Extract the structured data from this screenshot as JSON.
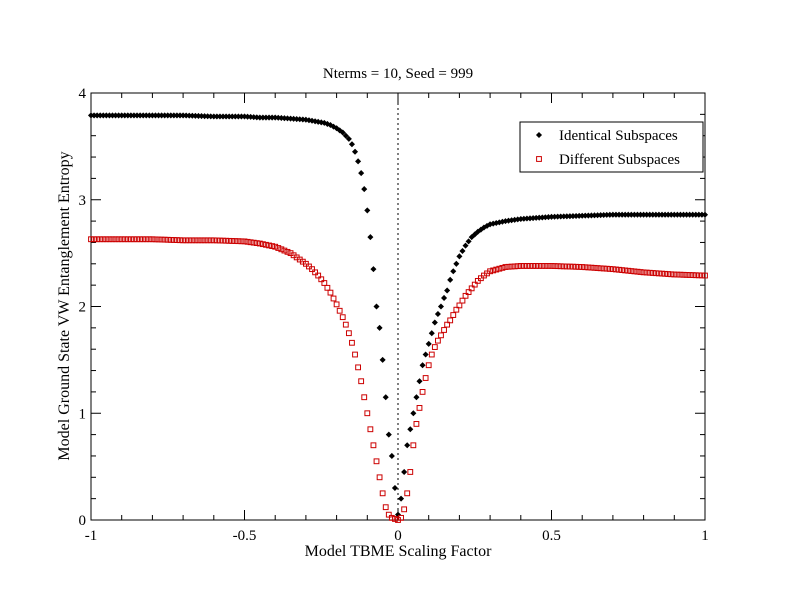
{
  "chart_data": {
    "type": "scatter",
    "title": "Nterms = 10, Seed = 999",
    "xlabel": "Model TBME Scaling Factor",
    "ylabel": "Model Ground State VW Entanglement Entropy",
    "xlim": [
      -1,
      1
    ],
    "ylim": [
      0,
      4
    ],
    "xticks": [
      -1,
      -0.5,
      0,
      0.5,
      1
    ],
    "xtick_labels": [
      "-1",
      "-0.5",
      "0",
      "0.5",
      "1"
    ],
    "yticks": [
      0,
      1,
      2,
      3,
      4
    ],
    "ytick_labels": [
      "0",
      "1",
      "2",
      "3",
      "4"
    ],
    "grid": false,
    "legend_position": "top-right",
    "series": [
      {
        "name": "Identical Subspaces",
        "marker": "diamond",
        "color": "#000000",
        "x": [
          -1.0,
          -0.9,
          -0.8,
          -0.7,
          -0.6,
          -0.5,
          -0.45,
          -0.4,
          -0.35,
          -0.3,
          -0.28,
          -0.26,
          -0.24,
          -0.22,
          -0.2,
          -0.19,
          -0.18,
          -0.17,
          -0.16,
          -0.15,
          -0.14,
          -0.13,
          -0.12,
          -0.11,
          -0.1,
          -0.09,
          -0.08,
          -0.07,
          -0.06,
          -0.05,
          -0.04,
          -0.03,
          -0.02,
          -0.01,
          0.0,
          0.01,
          0.02,
          0.03,
          0.04,
          0.05,
          0.06,
          0.07,
          0.08,
          0.09,
          0.1,
          0.11,
          0.12,
          0.13,
          0.14,
          0.15,
          0.16,
          0.17,
          0.18,
          0.19,
          0.2,
          0.22,
          0.24,
          0.26,
          0.28,
          0.3,
          0.35,
          0.4,
          0.5,
          0.6,
          0.7,
          0.8,
          0.9,
          1.0
        ],
        "y": [
          3.79,
          3.79,
          3.79,
          3.79,
          3.78,
          3.78,
          3.77,
          3.77,
          3.76,
          3.75,
          3.74,
          3.73,
          3.72,
          3.7,
          3.67,
          3.65,
          3.63,
          3.6,
          3.57,
          3.52,
          3.45,
          3.36,
          3.25,
          3.1,
          2.9,
          2.65,
          2.35,
          2.0,
          1.8,
          1.5,
          1.15,
          0.8,
          0.6,
          0.3,
          0.05,
          0.2,
          0.45,
          0.7,
          0.85,
          1.0,
          1.15,
          1.3,
          1.45,
          1.55,
          1.65,
          1.75,
          1.85,
          1.93,
          2.0,
          2.08,
          2.15,
          2.25,
          2.33,
          2.4,
          2.47,
          2.57,
          2.65,
          2.7,
          2.74,
          2.77,
          2.8,
          2.82,
          2.84,
          2.85,
          2.86,
          2.86,
          2.86,
          2.86
        ]
      },
      {
        "name": "Different Subspaces",
        "marker": "square",
        "color": "#cc0000",
        "x": [
          -1.0,
          -0.9,
          -0.8,
          -0.7,
          -0.6,
          -0.5,
          -0.45,
          -0.4,
          -0.35,
          -0.3,
          -0.28,
          -0.26,
          -0.24,
          -0.22,
          -0.2,
          -0.19,
          -0.18,
          -0.17,
          -0.16,
          -0.15,
          -0.14,
          -0.13,
          -0.12,
          -0.11,
          -0.1,
          -0.09,
          -0.08,
          -0.07,
          -0.06,
          -0.05,
          -0.04,
          -0.03,
          -0.02,
          -0.01,
          0.0,
          0.01,
          0.02,
          0.03,
          0.04,
          0.05,
          0.06,
          0.07,
          0.08,
          0.09,
          0.1,
          0.11,
          0.12,
          0.13,
          0.14,
          0.15,
          0.16,
          0.17,
          0.18,
          0.19,
          0.2,
          0.22,
          0.24,
          0.26,
          0.28,
          0.3,
          0.35,
          0.4,
          0.5,
          0.6,
          0.7,
          0.8,
          0.9,
          1.0
        ],
        "y": [
          2.63,
          2.63,
          2.63,
          2.62,
          2.62,
          2.61,
          2.59,
          2.56,
          2.5,
          2.4,
          2.35,
          2.29,
          2.22,
          2.13,
          2.02,
          1.96,
          1.9,
          1.83,
          1.75,
          1.66,
          1.55,
          1.43,
          1.3,
          1.15,
          1.0,
          0.85,
          0.7,
          0.55,
          0.4,
          0.25,
          0.12,
          0.05,
          0.02,
          0.01,
          0.0,
          0.02,
          0.1,
          0.25,
          0.45,
          0.7,
          0.9,
          1.05,
          1.2,
          1.33,
          1.45,
          1.55,
          1.62,
          1.68,
          1.73,
          1.78,
          1.83,
          1.87,
          1.92,
          1.97,
          2.01,
          2.1,
          2.17,
          2.24,
          2.29,
          2.33,
          2.37,
          2.38,
          2.38,
          2.37,
          2.35,
          2.32,
          2.3,
          2.29
        ]
      }
    ]
  }
}
